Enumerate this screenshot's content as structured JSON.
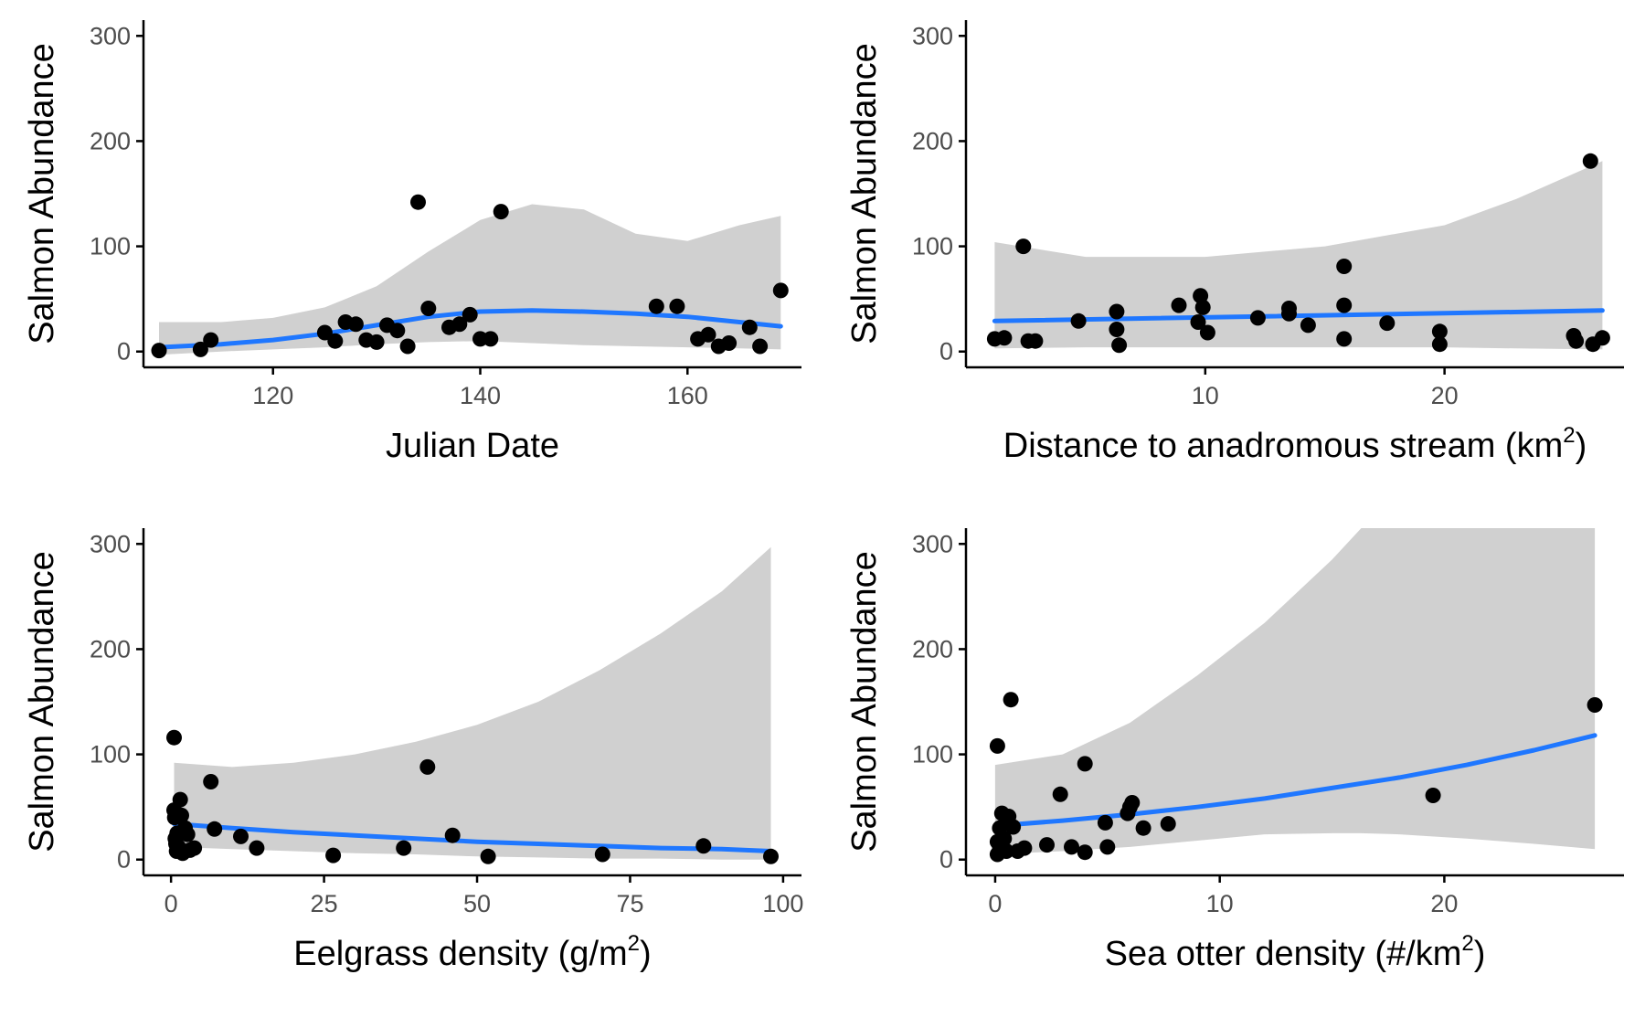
{
  "colors": {
    "points": "#000000",
    "fit_line": "#1f77ff",
    "ribbon": "#d0d0d0",
    "axis": "#000000",
    "tick_label": "#4d4d4d"
  },
  "chart_data": [
    {
      "id": "julian",
      "type": "scatter",
      "xlabel": "Julian Date",
      "ylabel": "Salmon Abundance",
      "xlim": [
        107.5,
        171
      ],
      "ylim": [
        -15,
        315
      ],
      "xticks": [
        120,
        140,
        160
      ],
      "yticks": [
        0,
        100,
        200,
        300
      ],
      "points": [
        [
          109,
          1
        ],
        [
          113,
          2
        ],
        [
          114,
          11
        ],
        [
          125,
          18
        ],
        [
          126,
          10
        ],
        [
          127,
          28
        ],
        [
          128,
          26
        ],
        [
          129,
          11
        ],
        [
          130,
          9
        ],
        [
          131,
          25
        ],
        [
          132,
          20
        ],
        [
          133,
          5
        ],
        [
          134,
          142
        ],
        [
          135,
          41
        ],
        [
          137,
          23
        ],
        [
          138,
          26
        ],
        [
          139,
          35
        ],
        [
          140,
          12
        ],
        [
          141,
          12
        ],
        [
          142,
          133
        ],
        [
          157,
          43
        ],
        [
          159,
          43
        ],
        [
          161,
          12
        ],
        [
          162,
          16
        ],
        [
          163,
          5
        ],
        [
          164,
          8
        ],
        [
          166,
          23
        ],
        [
          167,
          5
        ],
        [
          169,
          58
        ]
      ],
      "fit": {
        "x": [
          109,
          115,
          120,
          125,
          130,
          135,
          140,
          145,
          150,
          155,
          160,
          165,
          169
        ],
        "y": [
          4,
          7,
          11,
          17,
          25,
          33,
          38,
          39,
          38,
          36,
          33,
          28,
          24
        ]
      },
      "band": {
        "x": [
          109,
          115,
          120,
          125,
          130,
          135,
          140,
          145,
          150,
          155,
          160,
          165,
          169
        ],
        "lower": [
          -3,
          0,
          2,
          4,
          7,
          9,
          10,
          8,
          6,
          5,
          4,
          3,
          2
        ],
        "upper": [
          28,
          28,
          32,
          42,
          62,
          95,
          125,
          140,
          135,
          112,
          105,
          120,
          129
        ]
      }
    },
    {
      "id": "distance",
      "type": "scatter",
      "xlabel": "Distance to anadromous stream (km",
      "xlabel_sup": "2",
      "xlabel_suffix": ")",
      "ylabel": "Salmon Abundance",
      "xlim": [
        0,
        27.5
      ],
      "ylim": [
        -15,
        315
      ],
      "xticks": [
        10,
        20
      ],
      "yticks": [
        0,
        100,
        200,
        300
      ],
      "points": [
        [
          1.2,
          12
        ],
        [
          1.6,
          13
        ],
        [
          2.4,
          100
        ],
        [
          2.6,
          10
        ],
        [
          2.9,
          10
        ],
        [
          4.7,
          29
        ],
        [
          6.3,
          38
        ],
        [
          6.3,
          21
        ],
        [
          6.4,
          6
        ],
        [
          8.9,
          44
        ],
        [
          9.7,
          28
        ],
        [
          9.8,
          53
        ],
        [
          9.9,
          42
        ],
        [
          10.1,
          18
        ],
        [
          12.2,
          32
        ],
        [
          13.5,
          41
        ],
        [
          13.5,
          36
        ],
        [
          14.3,
          25
        ],
        [
          15.8,
          81
        ],
        [
          15.8,
          44
        ],
        [
          15.8,
          12
        ],
        [
          17.6,
          27
        ],
        [
          19.8,
          19
        ],
        [
          19.8,
          7
        ],
        [
          25.4,
          15
        ],
        [
          25.5,
          10
        ],
        [
          26.1,
          181
        ],
        [
          26.2,
          7
        ],
        [
          26.6,
          13
        ]
      ],
      "fit": {
        "x": [
          1.2,
          26.6
        ],
        "y": [
          29,
          39
        ]
      },
      "band": {
        "x": [
          1.2,
          5,
          10,
          15,
          20,
          23,
          26.6
        ],
        "lower": [
          3,
          4,
          4,
          4,
          4,
          3,
          2
        ],
        "upper": [
          104,
          90,
          90,
          100,
          120,
          145,
          181
        ]
      }
    },
    {
      "id": "eelgrass",
      "type": "scatter",
      "xlabel": "Eelgrass density (g/m",
      "xlabel_sup": "2",
      "xlabel_suffix": ")",
      "ylabel": "Salmon Abundance",
      "xlim": [
        -4.5,
        103
      ],
      "ylim": [
        -15,
        315
      ],
      "xticks": [
        0,
        25,
        50,
        75,
        100
      ],
      "yticks": [
        0,
        100,
        200,
        300
      ],
      "points": [
        [
          0.5,
          116
        ],
        [
          0.5,
          47
        ],
        [
          0.6,
          40
        ],
        [
          0.7,
          20
        ],
        [
          0.8,
          15
        ],
        [
          0.9,
          8
        ],
        [
          1.0,
          25
        ],
        [
          1.2,
          12
        ],
        [
          1.5,
          57
        ],
        [
          1.7,
          42
        ],
        [
          1.9,
          6
        ],
        [
          2.3,
          30
        ],
        [
          2.7,
          24
        ],
        [
          3.1,
          9
        ],
        [
          3.8,
          11
        ],
        [
          7.1,
          29
        ],
        [
          6.5,
          74
        ],
        [
          11.4,
          22
        ],
        [
          14.0,
          11
        ],
        [
          26.5,
          4
        ],
        [
          38.0,
          11
        ],
        [
          41.9,
          88
        ],
        [
          46.0,
          23
        ],
        [
          51.8,
          3
        ],
        [
          70.5,
          5
        ],
        [
          87.0,
          13
        ],
        [
          98.0,
          3
        ]
      ],
      "fit": {
        "x": [
          0.5,
          10,
          20,
          30,
          40,
          50,
          60,
          70,
          80,
          90,
          98
        ],
        "y": [
          34,
          30,
          26,
          23,
          20,
          17,
          15,
          13,
          11,
          10,
          8
        ]
      },
      "band": {
        "x": [
          0.5,
          10,
          20,
          30,
          40,
          50,
          60,
          70,
          80,
          90,
          98
        ],
        "lower": [
          12,
          10,
          8,
          6,
          5,
          3,
          2,
          1,
          1,
          0,
          0
        ],
        "upper": [
          92,
          88,
          92,
          100,
          112,
          128,
          150,
          180,
          215,
          255,
          297
        ]
      }
    },
    {
      "id": "otter",
      "type": "scatter",
      "xlabel": "Sea otter density (#/km",
      "xlabel_sup": "2",
      "xlabel_suffix": ")",
      "ylabel": "Salmon Abundance",
      "xlim": [
        -1.3,
        28
      ],
      "ylim": [
        -15,
        315
      ],
      "xticks": [
        0,
        10,
        20
      ],
      "yticks": [
        0,
        100,
        200,
        300
      ],
      "points": [
        [
          0.1,
          108
        ],
        [
          0.1,
          5
        ],
        [
          0.1,
          17
        ],
        [
          0.2,
          30
        ],
        [
          0.2,
          12
        ],
        [
          0.3,
          44
        ],
        [
          0.4,
          20
        ],
        [
          0.5,
          8
        ],
        [
          0.6,
          41
        ],
        [
          0.7,
          152
        ],
        [
          0.8,
          31
        ],
        [
          1.0,
          8
        ],
        [
          1.3,
          11
        ],
        [
          2.3,
          14
        ],
        [
          2.9,
          62
        ],
        [
          3.4,
          12
        ],
        [
          4.0,
          7
        ],
        [
          4.0,
          91
        ],
        [
          4.9,
          35
        ],
        [
          5.0,
          12
        ],
        [
          5.9,
          44
        ],
        [
          6.0,
          50
        ],
        [
          6.1,
          54
        ],
        [
          6.6,
          30
        ],
        [
          7.7,
          34
        ],
        [
          19.5,
          61
        ],
        [
          26.7,
          147
        ]
      ],
      "fit": {
        "x": [
          0,
          3,
          6,
          9,
          12,
          15,
          18,
          21,
          24,
          26.7
        ],
        "y": [
          32,
          37,
          43,
          50,
          58,
          68,
          78,
          90,
          104,
          118
        ]
      },
      "band": {
        "x": [
          0,
          3,
          6,
          9,
          12,
          15,
          16.3,
          18,
          21,
          24,
          26.7
        ],
        "lower": [
          5,
          8,
          12,
          18,
          24,
          25,
          25,
          24,
          20,
          15,
          10
        ],
        "upper": [
          90,
          100,
          130,
          175,
          225,
          285,
          315,
          315,
          315,
          315,
          315
        ]
      }
    }
  ]
}
